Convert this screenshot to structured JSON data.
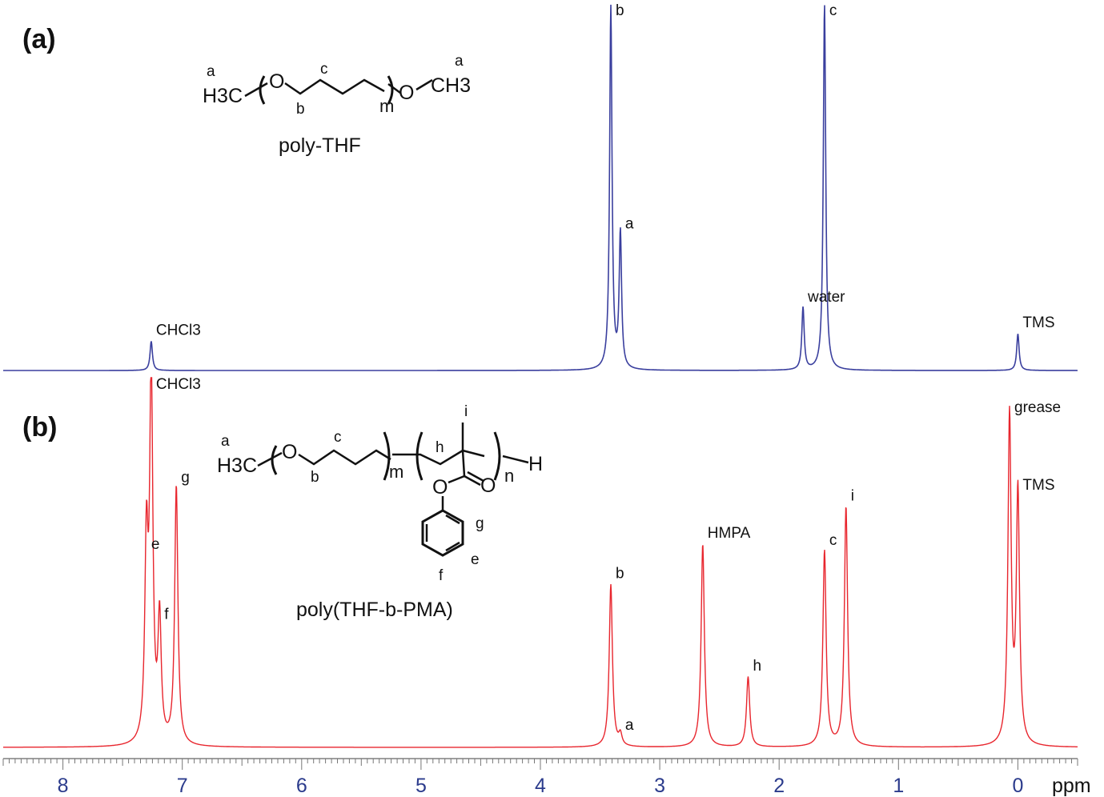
{
  "chart_data": [
    {
      "type": "line",
      "panel_label": "(a)",
      "compound": "poly-THF",
      "color": "#3a3f9e",
      "series": [
        {
          "peaks": [
            {
              "ppm": 7.26,
              "height": 0.08,
              "label": "CHCl3"
            },
            {
              "ppm": 3.41,
              "height": 0.99,
              "label": "b"
            },
            {
              "ppm": 3.33,
              "height": 0.37,
              "label": "a"
            },
            {
              "ppm": 1.8,
              "height": 0.17,
              "label": "water"
            },
            {
              "ppm": 1.62,
              "height": 1.0,
              "label": "c"
            },
            {
              "ppm": 0.0,
              "height": 0.1,
              "label": "TMS"
            }
          ]
        }
      ]
    },
    {
      "type": "line",
      "panel_label": "(b)",
      "compound": "poly(THF-b-PMA)",
      "color": "#e8262e",
      "series": [
        {
          "peaks": [
            {
              "ppm": 7.26,
              "height": 1.0,
              "label": "CHCl3"
            },
            {
              "ppm": 7.3,
              "height": 0.52,
              "label": "e"
            },
            {
              "ppm": 7.19,
              "height": 0.33,
              "label": "f"
            },
            {
              "ppm": 7.05,
              "height": 0.7,
              "label": "g"
            },
            {
              "ppm": 3.41,
              "height": 0.44,
              "label": "b"
            },
            {
              "ppm": 3.33,
              "height": 0.03,
              "label": "a"
            },
            {
              "ppm": 2.64,
              "height": 0.55,
              "label": "HMPA"
            },
            {
              "ppm": 2.26,
              "height": 0.19,
              "label": "h"
            },
            {
              "ppm": 1.62,
              "height": 0.53,
              "label": "c"
            },
            {
              "ppm": 1.44,
              "height": 0.65,
              "label": "i"
            },
            {
              "ppm": 0.07,
              "height": 0.89,
              "label": "grease"
            },
            {
              "ppm": 0.0,
              "height": 0.68,
              "label": "TMS"
            }
          ]
        }
      ]
    }
  ],
  "axis": {
    "xlabel": "ppm",
    "xlim": [
      8.5,
      -0.5
    ],
    "direction": "reversed",
    "ticks": [
      "8",
      "7",
      "6",
      "5",
      "4",
      "3",
      "2",
      "1",
      "0"
    ]
  },
  "structure_a": {
    "label_a_left": "a",
    "label_a_right": "a",
    "left_group": "H3C",
    "o1": "O",
    "label_b": "b",
    "label_c": "c",
    "label_m": "m",
    "o2": "O",
    "right_group": "CH3"
  },
  "structure_b": {
    "label_a": "a",
    "left_group": "H3C",
    "o1": "O",
    "label_b": "b",
    "label_c": "c",
    "label_m": "m",
    "label_h": "h",
    "label_i": "i",
    "label_n": "n",
    "end_group": "H",
    "ester_o1": "O",
    "ester_o2": "O",
    "label_g": "g",
    "label_e": "e",
    "label_f": "f"
  }
}
